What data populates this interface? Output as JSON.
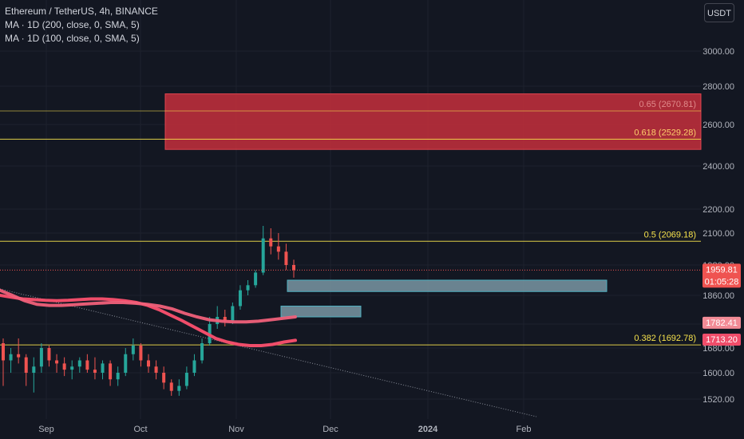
{
  "legend": {
    "title": "Ethereum / TetherUS, 4h, BINANCE",
    "ma200": "MA · 1D (200, close, 0, SMA, 5)",
    "ma100": "MA · 1D (100, close, 0, SMA, 5)"
  },
  "currency": "USDT",
  "colors": {
    "background": "#131722",
    "up": "#26a69a",
    "down": "#ef5350",
    "fib": "#f5e14c",
    "zone_red": "#c62f3c",
    "zone_teal": "#7a97a3",
    "ma200": "#f04d6a",
    "ma100": "#f0607a",
    "trendline": "#8a8f9a"
  },
  "chart_data": {
    "type": "candlestick",
    "symbol": "Ethereum / TetherUS",
    "interval": "4h",
    "exchange": "BINANCE",
    "x_ticks": [
      "Sep",
      "Oct",
      "Nov",
      "Dec",
      "2024",
      "Feb"
    ],
    "y_ticks": [
      1520,
      1600,
      1680,
      1780,
      1860,
      1980,
      2100,
      2200,
      2400,
      2600,
      2800,
      3000
    ],
    "y_tick_labels": [
      "1520.00",
      "1600.00",
      "1680.00",
      "1780.00",
      "1860.00",
      "1980.00",
      "2100.00",
      "2200.00",
      "2400.00",
      "2600.00",
      "2800.00",
      "3000.00"
    ],
    "ylim": [
      1480,
      3200
    ],
    "ohlc_approx": [
      [
        1700,
        1720,
        1560,
        1640
      ],
      [
        1640,
        1680,
        1600,
        1660
      ],
      [
        1660,
        1720,
        1630,
        1650
      ],
      [
        1650,
        1660,
        1560,
        1600
      ],
      [
        1600,
        1650,
        1540,
        1620
      ],
      [
        1620,
        1700,
        1600,
        1680
      ],
      [
        1680,
        1690,
        1620,
        1640
      ],
      [
        1640,
        1660,
        1600,
        1630
      ],
      [
        1630,
        1650,
        1590,
        1610
      ],
      [
        1610,
        1640,
        1580,
        1620
      ],
      [
        1620,
        1650,
        1600,
        1640
      ],
      [
        1640,
        1660,
        1600,
        1610
      ],
      [
        1610,
        1650,
        1580,
        1600
      ],
      [
        1600,
        1640,
        1580,
        1630
      ],
      [
        1630,
        1640,
        1560,
        1580
      ],
      [
        1580,
        1620,
        1560,
        1600
      ],
      [
        1600,
        1680,
        1590,
        1660
      ],
      [
        1660,
        1720,
        1640,
        1690
      ],
      [
        1690,
        1700,
        1620,
        1640
      ],
      [
        1640,
        1660,
        1600,
        1620
      ],
      [
        1620,
        1640,
        1580,
        1600
      ],
      [
        1600,
        1620,
        1550,
        1570
      ],
      [
        1570,
        1580,
        1530,
        1545
      ],
      [
        1545,
        1580,
        1530,
        1560
      ],
      [
        1560,
        1620,
        1550,
        1600
      ],
      [
        1600,
        1660,
        1590,
        1640
      ],
      [
        1640,
        1720,
        1630,
        1700
      ],
      [
        1700,
        1800,
        1690,
        1780
      ],
      [
        1780,
        1830,
        1760,
        1800
      ],
      [
        1800,
        1820,
        1770,
        1790
      ],
      [
        1790,
        1840,
        1780,
        1830
      ],
      [
        1830,
        1900,
        1820,
        1880
      ],
      [
        1880,
        1920,
        1860,
        1900
      ],
      [
        1900,
        1960,
        1890,
        1950
      ],
      [
        1950,
        2130,
        1940,
        2080
      ],
      [
        2080,
        2120,
        2020,
        2050
      ],
      [
        2050,
        2100,
        2000,
        2030
      ],
      [
        2030,
        2060,
        1960,
        1980
      ],
      [
        1980,
        2000,
        1930,
        1960
      ]
    ],
    "fib_levels": [
      {
        "label": "0.65 (2670.81)",
        "value": 2670.81
      },
      {
        "label": "0.618 (2529.28)",
        "value": 2529.28
      },
      {
        "label": "0.5 (2069.18)",
        "value": 2069.18
      },
      {
        "label": "0.382 (1692.78)",
        "value": 1692.78
      }
    ],
    "zones": [
      {
        "name": "supply",
        "from_value": 2480,
        "to_value": 2760
      },
      {
        "name": "demand-1",
        "from_value": 1875,
        "to_value": 1920
      },
      {
        "name": "demand-2",
        "from_value": 1800,
        "to_value": 1830
      }
    ],
    "ma_200": [
      1860,
      1855,
      1850,
      1848,
      1846,
      1845,
      1846,
      1848,
      1850,
      1850,
      1848,
      1845,
      1840,
      1832,
      1820,
      1805,
      1790,
      1770,
      1745,
      1720,
      1705,
      1695,
      1690,
      1690,
      1695,
      1705,
      1712
    ],
    "ma_100": [
      1880,
      1860,
      1845,
      1835,
      1832,
      1832,
      1834,
      1836,
      1838,
      1840,
      1840,
      1838,
      1835,
      1830,
      1822,
      1810,
      1800,
      1792,
      1788,
      1786,
      1786,
      1788,
      1792,
      1796,
      1800
    ],
    "price_labels": [
      {
        "price": "1959.81",
        "countdown": "01:05:28",
        "value": 1959.81
      },
      {
        "price": "1782.41",
        "value": 1782.41
      },
      {
        "price": "1713.20",
        "value": 1713.2
      }
    ]
  }
}
